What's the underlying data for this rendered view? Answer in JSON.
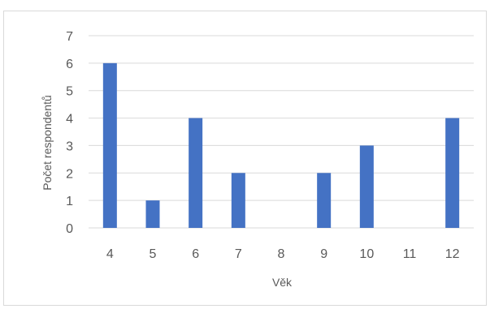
{
  "chart_data": {
    "type": "bar",
    "xlabel": "Věk",
    "ylabel": "Počet respondentů",
    "categories": [
      "4",
      "5",
      "6",
      "7",
      "8",
      "9",
      "10",
      "11",
      "12"
    ],
    "values": [
      6,
      1,
      4,
      2,
      0,
      2,
      3,
      0,
      4
    ],
    "ylim": [
      0,
      7
    ],
    "yticks": [
      0,
      1,
      2,
      3,
      4,
      5,
      6,
      7
    ],
    "grid": true,
    "legend": "none",
    "bar_color": "#4472c4",
    "grid_color": "#d9d9d9"
  }
}
